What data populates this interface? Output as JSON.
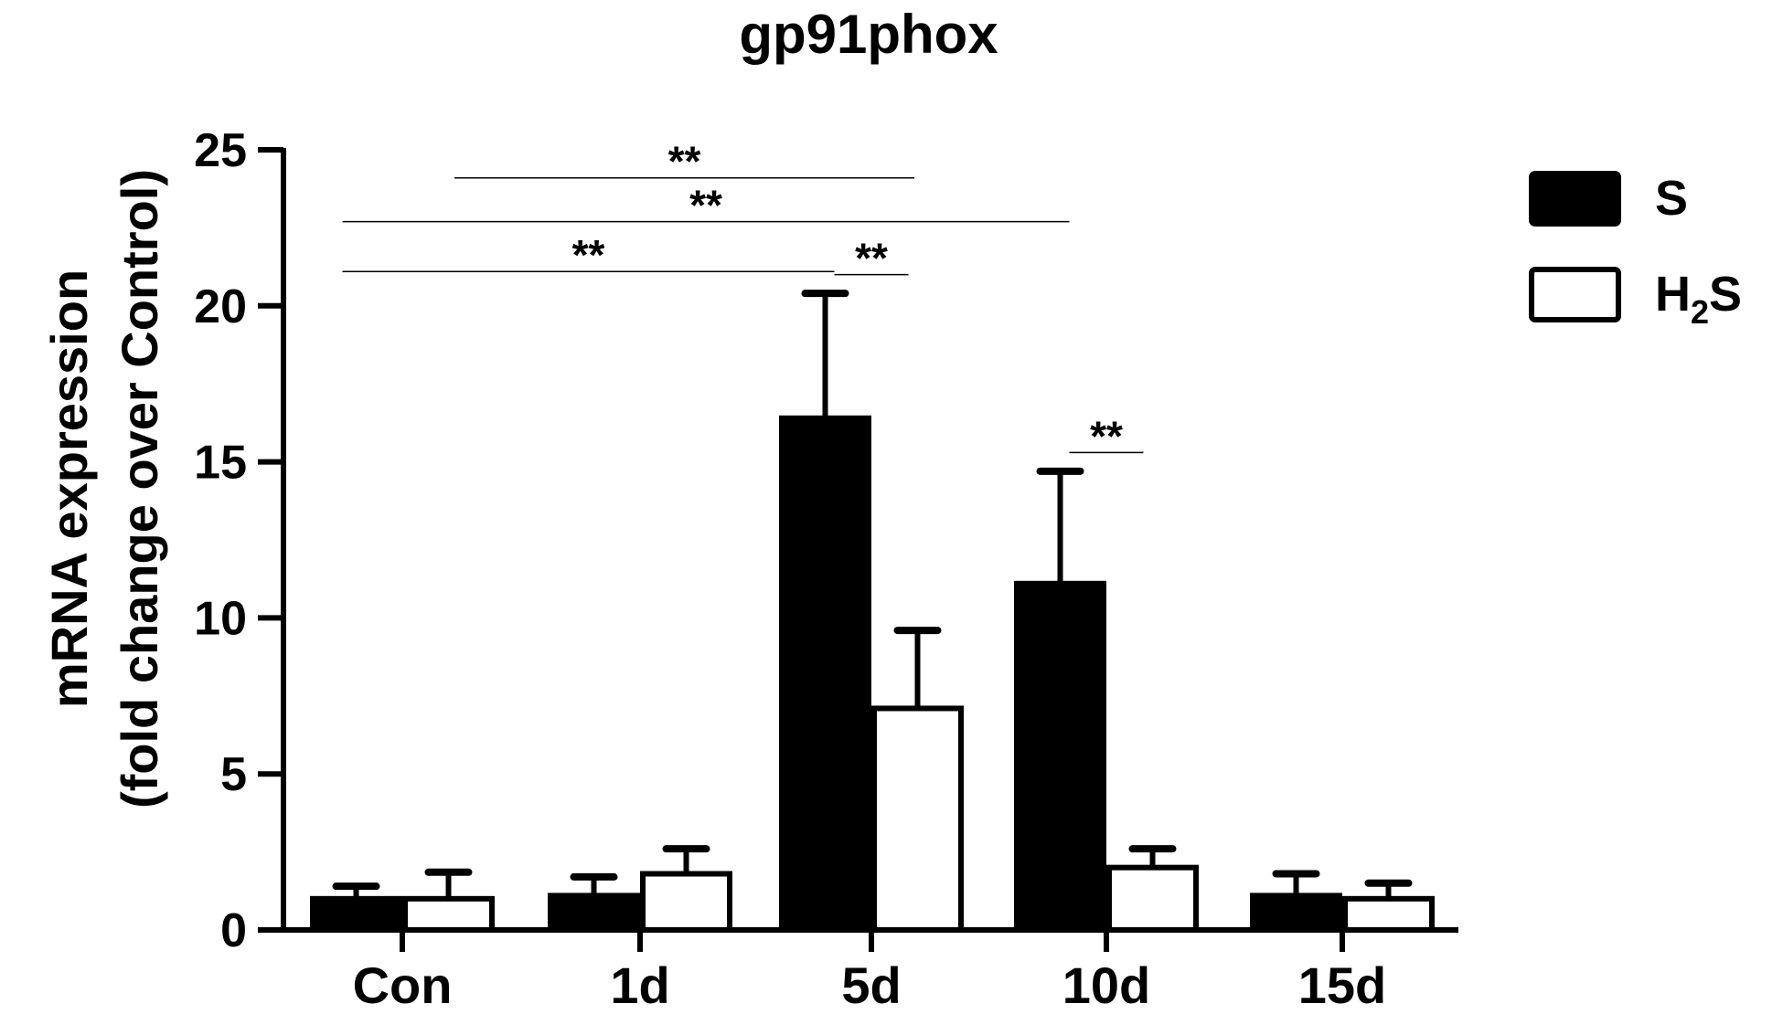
{
  "chart_data": {
    "type": "bar",
    "title": "gp91phox",
    "ylabel_line1": "mRNA expression",
    "ylabel_line2": "(fold change over Control)",
    "xlabel": "",
    "categories": [
      "Con",
      "1d",
      "5d",
      "10d",
      "15d"
    ],
    "ylim": [
      0,
      25
    ],
    "yticks": [
      0,
      5,
      10,
      15,
      20,
      25
    ],
    "series": [
      {
        "name": "S",
        "fill": "#000000",
        "values": [
          1.0,
          1.1,
          16.4,
          11.1,
          1.1
        ],
        "errors": [
          0.4,
          0.6,
          4.0,
          3.6,
          0.7
        ]
      },
      {
        "name": "H2S",
        "fill": "#ffffff",
        "values": [
          1.0,
          1.8,
          7.1,
          2.0,
          1.0
        ],
        "errors": [
          0.85,
          0.8,
          2.5,
          0.6,
          0.5
        ]
      }
    ],
    "legend": {
      "position": "top-right",
      "items": [
        {
          "label": "S",
          "sub": "",
          "post": ""
        },
        {
          "label": "H",
          "sub": "2",
          "post": "S"
        }
      ]
    },
    "significance": [
      {
        "label": "**",
        "from_category": 0,
        "from_series": 1,
        "to_category": 2,
        "to_series": 0,
        "y": 24.1
      },
      {
        "label": "**",
        "from_category": 0,
        "from_series": 0,
        "to_category": 3,
        "to_series": 0,
        "y": 22.7
      },
      {
        "label": "**",
        "from_category": 0,
        "from_series": 0,
        "to_category": 2,
        "to_series": 0,
        "y": 21.1
      },
      {
        "label": "**",
        "from_category": 2,
        "from_series": 0,
        "to_category": 2,
        "to_series": 1,
        "y": 21.0
      },
      {
        "label": "**",
        "from_category": 3,
        "from_series": 0,
        "to_category": 3,
        "to_series": 1,
        "y": 15.3
      }
    ],
    "colors": {
      "axis": "#000000",
      "bar_s": "#000000",
      "bar_h2s": "#ffffff"
    }
  }
}
